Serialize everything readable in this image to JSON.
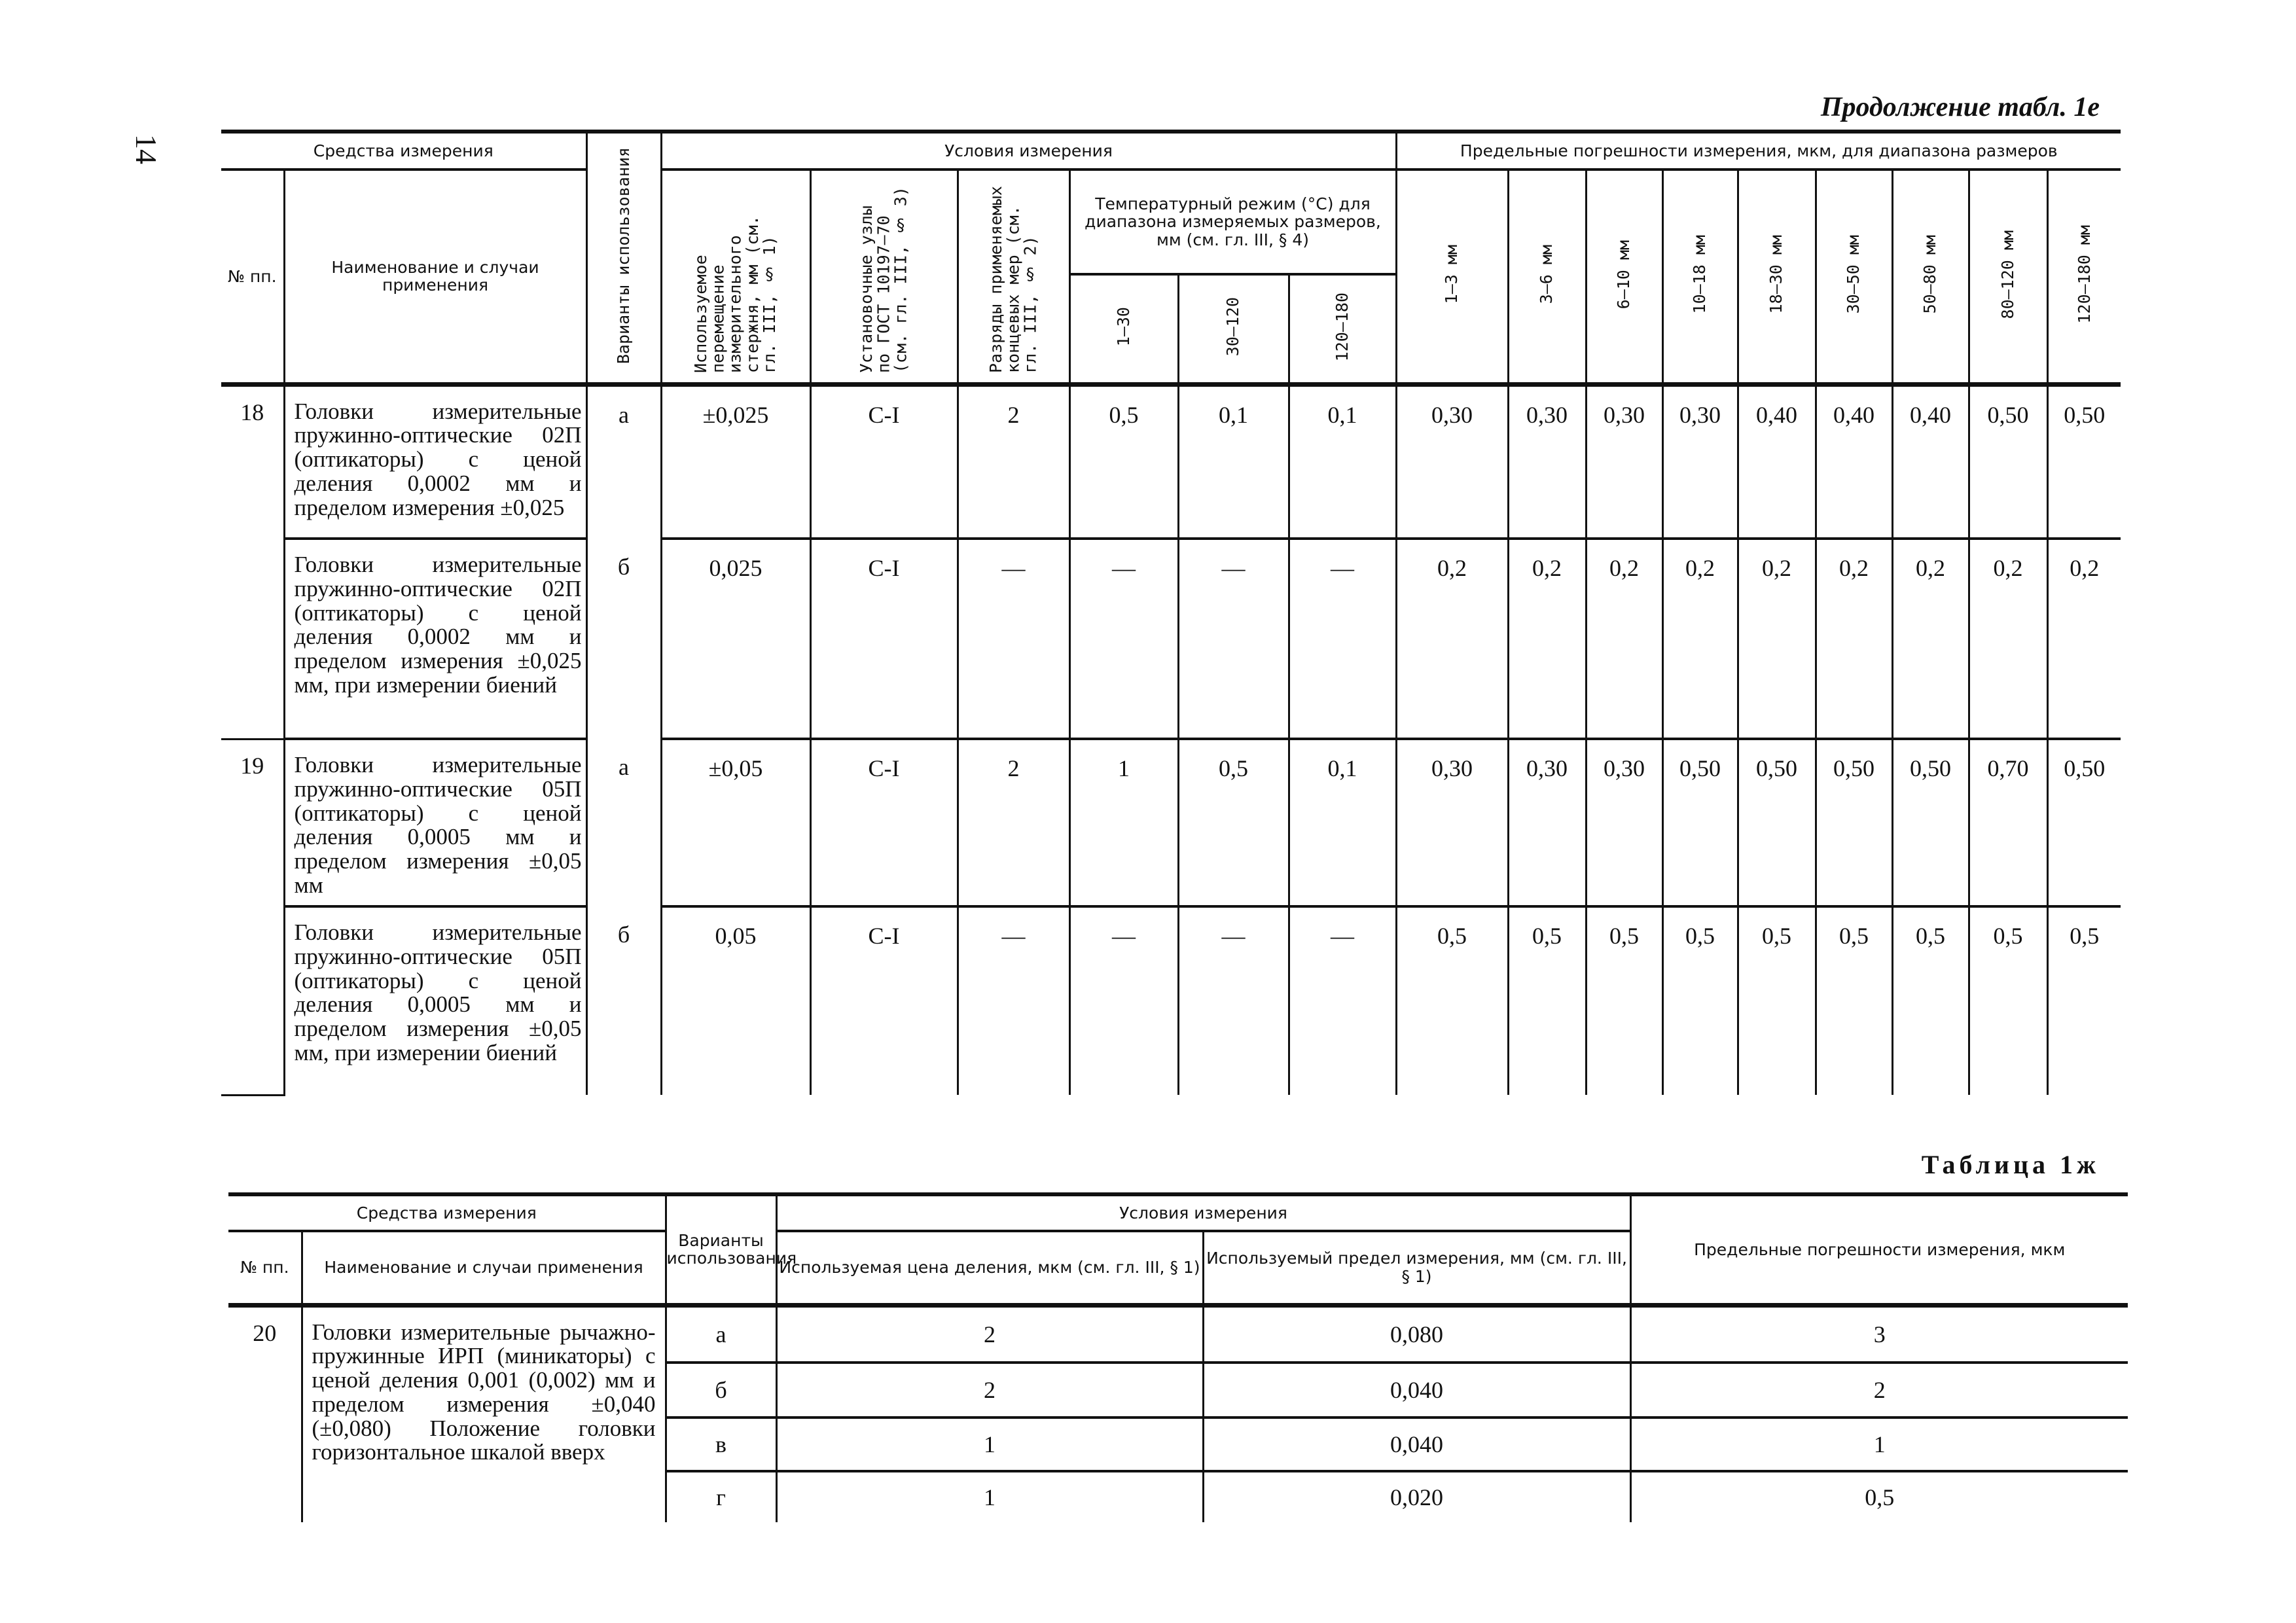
{
  "page_number": "14",
  "continuation_title": "Продолжение табл. 1е",
  "table1": {
    "header": {
      "group_means": "Средства измерения",
      "no": "№ пп.",
      "name": "Наименование и случаи применения",
      "variants": "Варианты использования",
      "group_conditions": "Условия измерения",
      "displacement": "Используемое перемещение измерительного стержня, мм (см. гл. III, § 1)",
      "setting_units": "Установочные узлы по ГОСТ 10197—70 (см. гл. III, § 3)",
      "grades": "Разряды применяемых концевых мер (см. гл. III, § 2)",
      "temp_group": "Температурный режим (°С) для диапазона измеряемых размеров, мм (см. гл. III, § 4)",
      "temp_ranges": [
        "1—30",
        "30—120",
        "120—180"
      ],
      "errors_group": "Предельные погрешности измерения, мкм, для диапазона размеров",
      "error_ranges": [
        "1—3 мм",
        "3—6 мм",
        "6—10 мм",
        "10—18 мм",
        "18—30 мм",
        "30—50 мм",
        "50—80 мм",
        "80—120 мм",
        "120—180 мм"
      ]
    },
    "rows": [
      {
        "no": "18",
        "name": "Головки измерительные пружинно-оптические 02П (оптикаторы) с ценой деления 0,0002 мм и пределом измерения ±0,025",
        "variant": "а",
        "displacement": "±0,025",
        "setting": "С-I",
        "grade": "2",
        "temps": [
          "0,5",
          "0,1",
          "0,1"
        ],
        "errors": [
          "0,30",
          "0,30",
          "0,30",
          "0,30",
          "0,40",
          "0,40",
          "0,40",
          "0,50",
          "0,50"
        ]
      },
      {
        "no": "",
        "name": "Головки измерительные пружинно-оптические 02П (оптикаторы) с ценой деления 0,0002 мм и пределом измерения ±0,025 мм, при измерении биений",
        "variant": "б",
        "displacement": "0,025",
        "setting": "С-I",
        "grade": "—",
        "temps": [
          "—",
          "—",
          "—"
        ],
        "errors": [
          "0,2",
          "0,2",
          "0,2",
          "0,2",
          "0,2",
          "0,2",
          "0,2",
          "0,2",
          "0,2"
        ]
      },
      {
        "no": "19",
        "name": "Головки измерительные пружинно-оптические 05П (оптикаторы) с ценой деления 0,0005 мм и пределом измерения ±0,05 мм",
        "variant": "а",
        "displacement": "±0,05",
        "setting": "С-I",
        "grade": "2",
        "temps": [
          "1",
          "0,5",
          "0,1"
        ],
        "errors": [
          "0,30",
          "0,30",
          "0,30",
          "0,50",
          "0,50",
          "0,50",
          "0,50",
          "0,70",
          "0,50"
        ]
      },
      {
        "no": "",
        "name": "Головки измерительные пружинно-оптические 05П (оптикаторы) с ценой деления 0,0005 мм и пределом измерения ±0,05 мм, при измерении биений",
        "variant": "б",
        "displacement": "0,05",
        "setting": "С-I",
        "grade": "—",
        "temps": [
          "—",
          "—",
          "—"
        ],
        "errors": [
          "0,5",
          "0,5",
          "0,5",
          "0,5",
          "0,5",
          "0,5",
          "0,5",
          "0,5",
          "0,5"
        ]
      }
    ]
  },
  "table2_title": "Таблица 1ж",
  "table2": {
    "header": {
      "group_means": "Средства измерения",
      "no": "№ пп.",
      "name": "Наименование и случаи применения",
      "variants": "Варианты использования",
      "group_conditions": "Условия измерения",
      "division": "Используемая цена деления, мкм (см. гл. III, § 1)",
      "limit": "Используемый предел измерения, мм (см. гл. III, § 1)",
      "errors": "Предельные погрешности измерения, мкм"
    },
    "no": "20",
    "name": "Головки измерительные рычажно-пружинные ИРП (миникаторы) с ценой деления 0,001 (0,002) мм и пределом измерения ±0,040 (±0,080) Положение головки горизонтальное шкалой вверх",
    "rows": [
      {
        "variant": "а",
        "division": "2",
        "limit": "0,080",
        "error": "3"
      },
      {
        "variant": "б",
        "division": "2",
        "limit": "0,040",
        "error": "2"
      },
      {
        "variant": "в",
        "division": "1",
        "limit": "0,040",
        "error": "1"
      },
      {
        "variant": "г",
        "division": "1",
        "limit": "0,020",
        "error": "0,5"
      }
    ]
  }
}
